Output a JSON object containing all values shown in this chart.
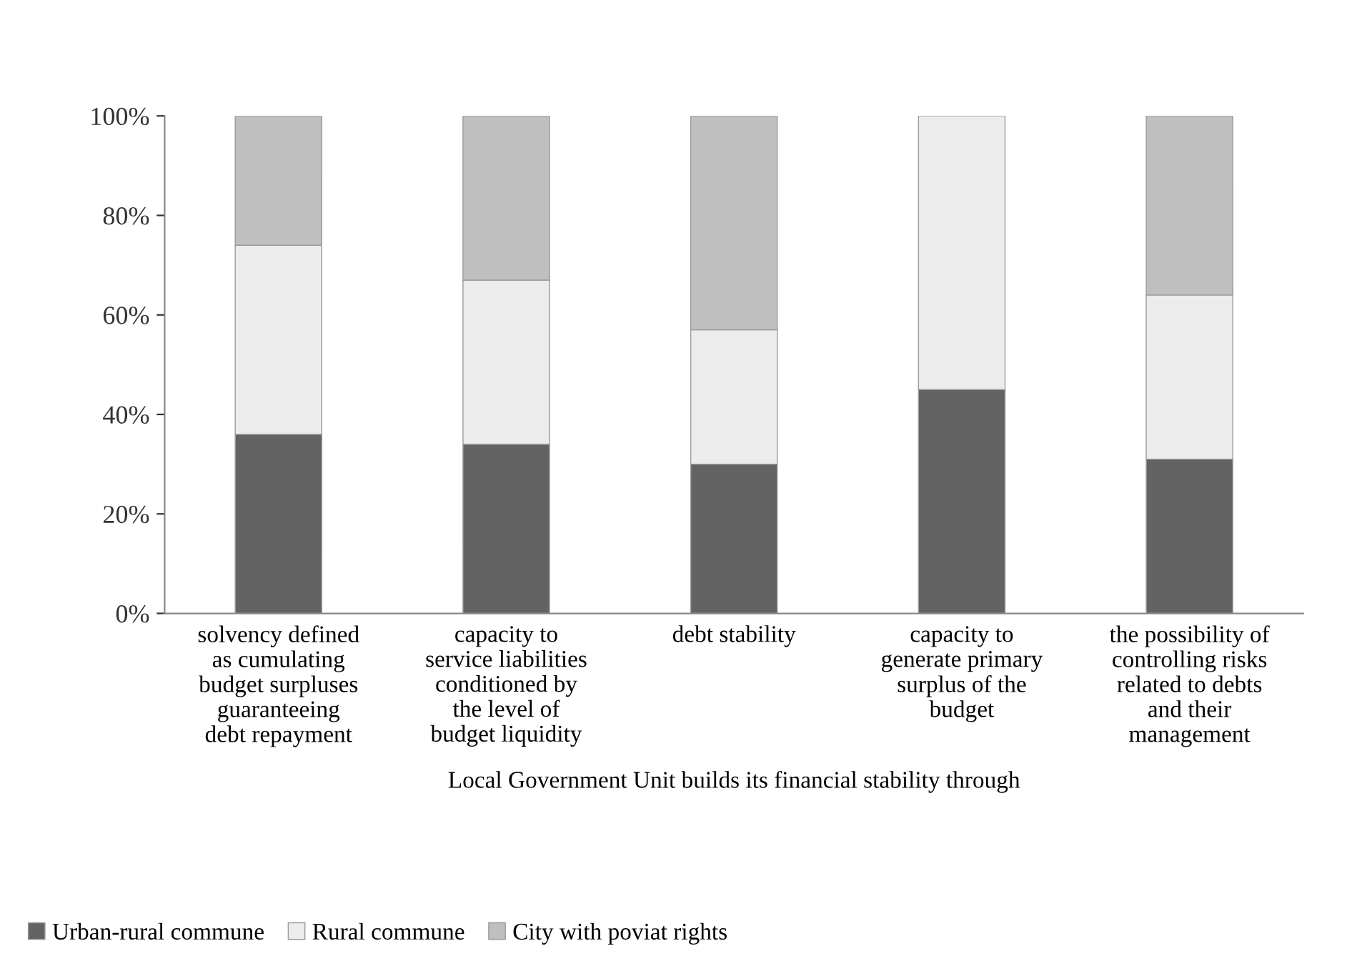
{
  "chart_data": {
    "type": "bar",
    "stacked": true,
    "xlabel": "Local Government Unit builds its financial stability through",
    "categories": [
      "solvency defined\nas cumulating\nbudget surpluses\nguaranteeing\ndebt repayment",
      "capacity to\nservice liabilities\nconditioned by\nthe level of\nbudget liquidity",
      "debt stability",
      "capacity to\ngenerate primary\nsurplus of the\nbudget",
      "the possibility of\ncontrolling risks\nrelated to debts\nand their\nmanagement"
    ],
    "series": [
      {
        "name": "Urban-rural commune",
        "color": "#636363",
        "values": [
          36,
          34,
          30,
          45,
          31
        ]
      },
      {
        "name": "Rural commune",
        "color": "#ececec",
        "values": [
          38,
          33,
          27,
          55,
          33
        ]
      },
      {
        "name": "City with poviat rights",
        "color": "#bfbfbf",
        "values": [
          26,
          33,
          43,
          0,
          36
        ]
      }
    ],
    "ylim": [
      0,
      100
    ],
    "yticks": [
      {
        "value": 0,
        "label": "0%"
      },
      {
        "value": 20,
        "label": "20%"
      },
      {
        "value": 40,
        "label": "40%"
      },
      {
        "value": 60,
        "label": "60%"
      },
      {
        "value": 80,
        "label": "80%"
      },
      {
        "value": 100,
        "label": "100%"
      }
    ],
    "grid": false,
    "legend": "bottom left"
  }
}
